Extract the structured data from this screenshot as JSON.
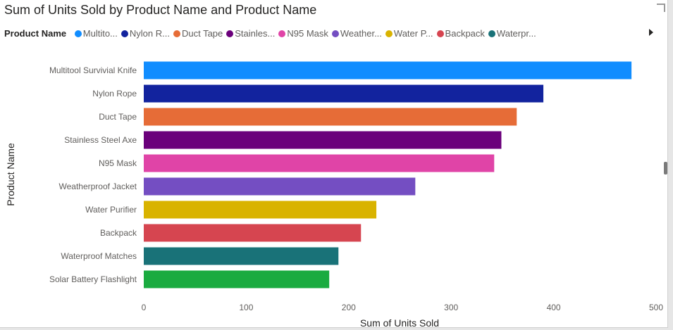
{
  "chart_data": {
    "type": "bar",
    "orientation": "horizontal",
    "title": "Sum of Units Sold by Product Name and Product Name",
    "legend_title": "Product Name",
    "legend_position": "top-left",
    "xlabel": "Sum of Units Sold",
    "ylabel": "Product Name",
    "xlim": [
      0,
      500
    ],
    "xticks": [
      0,
      100,
      200,
      300,
      400,
      500
    ],
    "grid": false,
    "legend": [
      {
        "label": "Multito...",
        "color": "#118DFF"
      },
      {
        "label": "Nylon R...",
        "color": "#12239E"
      },
      {
        "label": "Duct Tape",
        "color": "#E66C37"
      },
      {
        "label": "Stainles...",
        "color": "#6B007B"
      },
      {
        "label": "N95 Mask",
        "color": "#E044A7"
      },
      {
        "label": "Weather...",
        "color": "#744EC2"
      },
      {
        "label": "Water P...",
        "color": "#D9B300"
      },
      {
        "label": "Backpack",
        "color": "#D64550"
      },
      {
        "label": "Waterpr...",
        "color": "#197278"
      }
    ],
    "categories": [
      "Multitool Survivial Knife",
      "Nylon Rope",
      "Duct Tape",
      "Stainless Steel Axe",
      "N95 Mask",
      "Weatherproof Jacket",
      "Water Purifier",
      "Backpack",
      "Waterproof Matches",
      "Solar Battery Flashlight"
    ],
    "values": [
      476,
      390,
      364,
      349,
      342,
      265,
      227,
      212,
      190,
      181
    ],
    "colors": [
      "#118DFF",
      "#12239E",
      "#E66C37",
      "#6B007B",
      "#E044A7",
      "#744EC2",
      "#D9B300",
      "#D64550",
      "#197278",
      "#1AAB40"
    ]
  }
}
